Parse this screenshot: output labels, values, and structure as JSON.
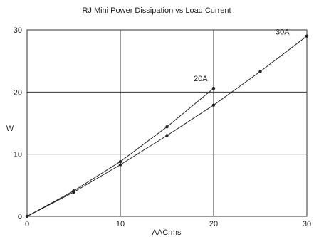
{
  "chart_data": {
    "type": "line",
    "title": "RJ Mini Power Dissipation vs Load Current",
    "xlabel": "AACrms",
    "ylabel": "W",
    "xlim": [
      0,
      30
    ],
    "ylim": [
      0,
      30
    ],
    "x_ticks": [
      0,
      10,
      20,
      30
    ],
    "y_ticks": [
      0,
      10,
      20,
      30
    ],
    "grid": true,
    "series": [
      {
        "name": "20A",
        "x": [
          0,
          5,
          10,
          15,
          20
        ],
        "y": [
          0,
          4.1,
          8.8,
          14.4,
          20.6
        ]
      },
      {
        "name": "30A",
        "x": [
          0,
          5,
          10,
          15,
          20,
          25,
          30
        ],
        "y": [
          0,
          3.9,
          8.3,
          13.0,
          17.9,
          23.3,
          29.0
        ]
      }
    ]
  }
}
